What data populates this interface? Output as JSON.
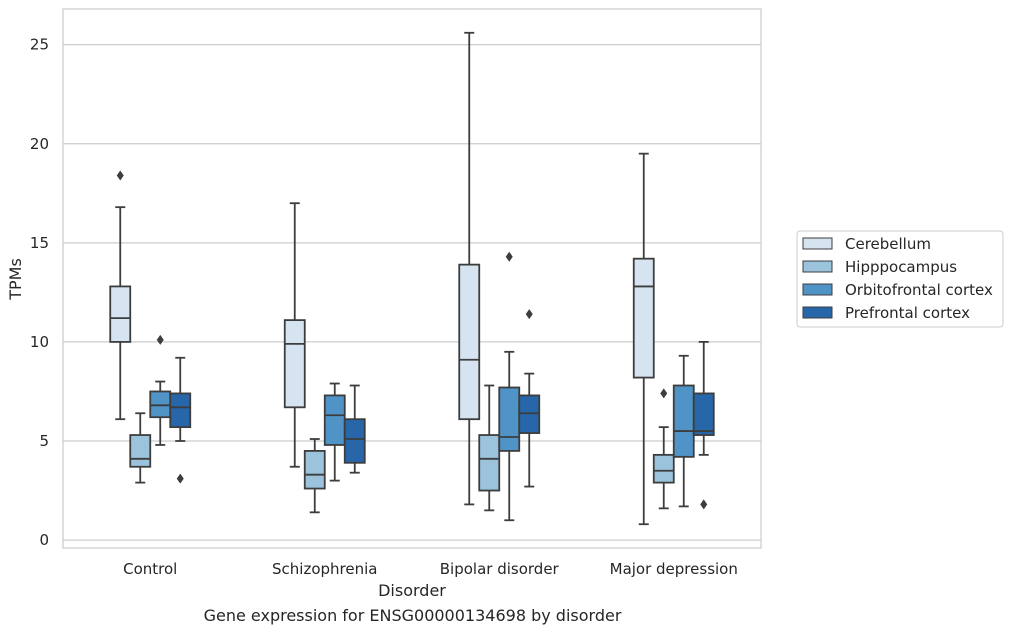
{
  "chart_data": {
    "type": "box",
    "caption": "Gene expression for ENSG00000134698 by disorder",
    "xlabel": "Disorder",
    "ylabel": "TPMs",
    "ylim": [
      -0.4,
      26.8
    ],
    "yticks": [
      0,
      5,
      10,
      15,
      20,
      25
    ],
    "grid": "horizontal",
    "legend_position": "right",
    "categories": [
      "Control",
      "Schizophrenia",
      "Bipolar disorder",
      "Major depression"
    ],
    "series": [
      {
        "name": "Cerebellum",
        "color": "#d6e4f2",
        "boxes": [
          {
            "whisker_low": 6.1,
            "q1": 10.0,
            "median": 11.2,
            "q3": 12.8,
            "whisker_high": 16.8,
            "outliers": [
              18.4
            ]
          },
          {
            "whisker_low": 3.7,
            "q1": 6.7,
            "median": 9.9,
            "q3": 11.1,
            "whisker_high": 17.0,
            "outliers": []
          },
          {
            "whisker_low": 1.8,
            "q1": 6.1,
            "median": 9.1,
            "q3": 13.9,
            "whisker_high": 25.6,
            "outliers": []
          },
          {
            "whisker_low": 0.8,
            "q1": 8.2,
            "median": 12.8,
            "q3": 14.2,
            "whisker_high": 19.5,
            "outliers": []
          }
        ]
      },
      {
        "name": "Hipppocampus",
        "color": "#9cc3dc",
        "boxes": [
          {
            "whisker_low": 2.9,
            "q1": 3.7,
            "median": 4.1,
            "q3": 5.3,
            "whisker_high": 6.4,
            "outliers": []
          },
          {
            "whisker_low": 1.4,
            "q1": 2.6,
            "median": 3.3,
            "q3": 4.5,
            "whisker_high": 5.1,
            "outliers": []
          },
          {
            "whisker_low": 1.5,
            "q1": 2.5,
            "median": 4.1,
            "q3": 5.3,
            "whisker_high": 7.8,
            "outliers": []
          },
          {
            "whisker_low": 1.6,
            "q1": 2.9,
            "median": 3.5,
            "q3": 4.3,
            "whisker_high": 5.7,
            "outliers": [
              7.4
            ]
          }
        ]
      },
      {
        "name": "Orbitofrontal cortex",
        "color": "#5093c6",
        "boxes": [
          {
            "whisker_low": 4.8,
            "q1": 6.2,
            "median": 6.8,
            "q3": 7.5,
            "whisker_high": 8.0,
            "outliers": [
              10.1
            ]
          },
          {
            "whisker_low": 3.0,
            "q1": 4.8,
            "median": 6.3,
            "q3": 7.3,
            "whisker_high": 7.9,
            "outliers": []
          },
          {
            "whisker_low": 1.0,
            "q1": 4.5,
            "median": 5.2,
            "q3": 7.7,
            "whisker_high": 9.5,
            "outliers": [
              14.3
            ]
          },
          {
            "whisker_low": 1.7,
            "q1": 4.2,
            "median": 5.5,
            "q3": 7.8,
            "whisker_high": 9.3,
            "outliers": []
          }
        ]
      },
      {
        "name": "Prefrontal cortex",
        "color": "#2666a9",
        "boxes": [
          {
            "whisker_low": 5.0,
            "q1": 5.7,
            "median": 6.7,
            "q3": 7.4,
            "whisker_high": 9.2,
            "outliers": [
              3.1
            ]
          },
          {
            "whisker_low": 3.4,
            "q1": 3.9,
            "median": 5.1,
            "q3": 6.1,
            "whisker_high": 7.8,
            "outliers": []
          },
          {
            "whisker_low": 2.7,
            "q1": 5.4,
            "median": 6.4,
            "q3": 7.3,
            "whisker_high": 8.4,
            "outliers": [
              11.4
            ]
          },
          {
            "whisker_low": 4.3,
            "q1": 5.3,
            "median": 5.5,
            "q3": 7.4,
            "whisker_high": 10.0,
            "outliers": [
              1.8
            ]
          }
        ]
      }
    ]
  }
}
